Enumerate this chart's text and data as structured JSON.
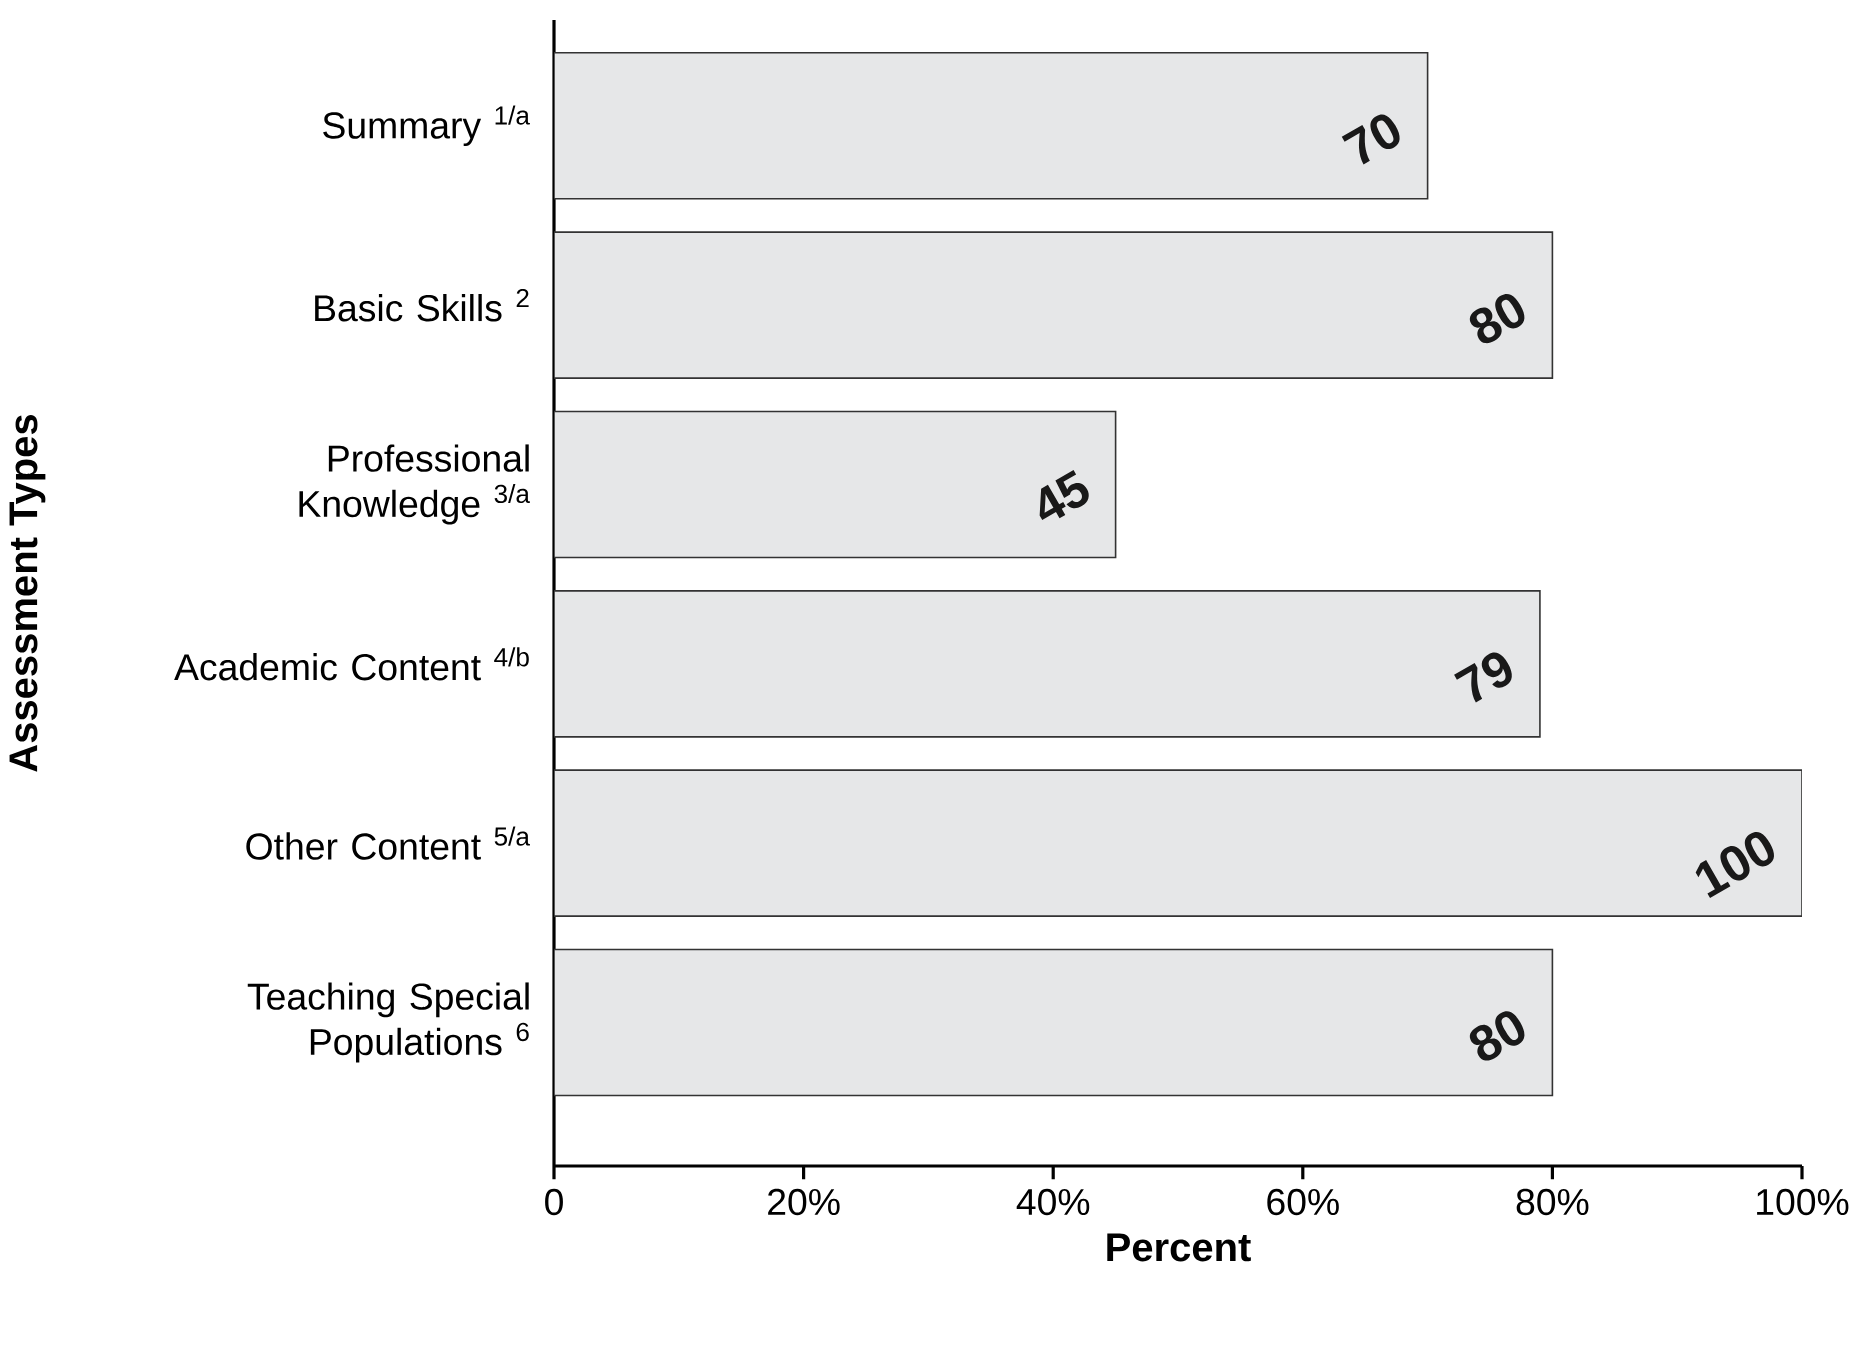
{
  "chart_data": {
    "type": "bar",
    "orientation": "horizontal",
    "xlabel": "Percent",
    "ylabel": "Assessment Types",
    "categories": [
      "Summary $^{1/a}$",
      "Basic Skills $^{2}$",
      "Professional Knowledge $^{3/a}$",
      "Academic Content $^{4/b}$",
      "Other Content $^{5/a}$",
      "Teaching Special Populations $^{6}$"
    ],
    "values": [
      70,
      80,
      45,
      79,
      100,
      80
    ],
    "color": "#e6e7e8",
    "data_labels": true,
    "xlim": [
      0,
      100
    ],
    "xticks": [
      0,
      {
        "value": 20,
        "label": "20%"
      },
      {
        "value": 40,
        "label": "40%"
      },
      {
        "value": 60,
        "label": "60%"
      },
      {
        "value": 80,
        "label": "80%"
      },
      {
        "value": 100,
        "label": "100%"
      }
    ],
    "grid": false
  }
}
